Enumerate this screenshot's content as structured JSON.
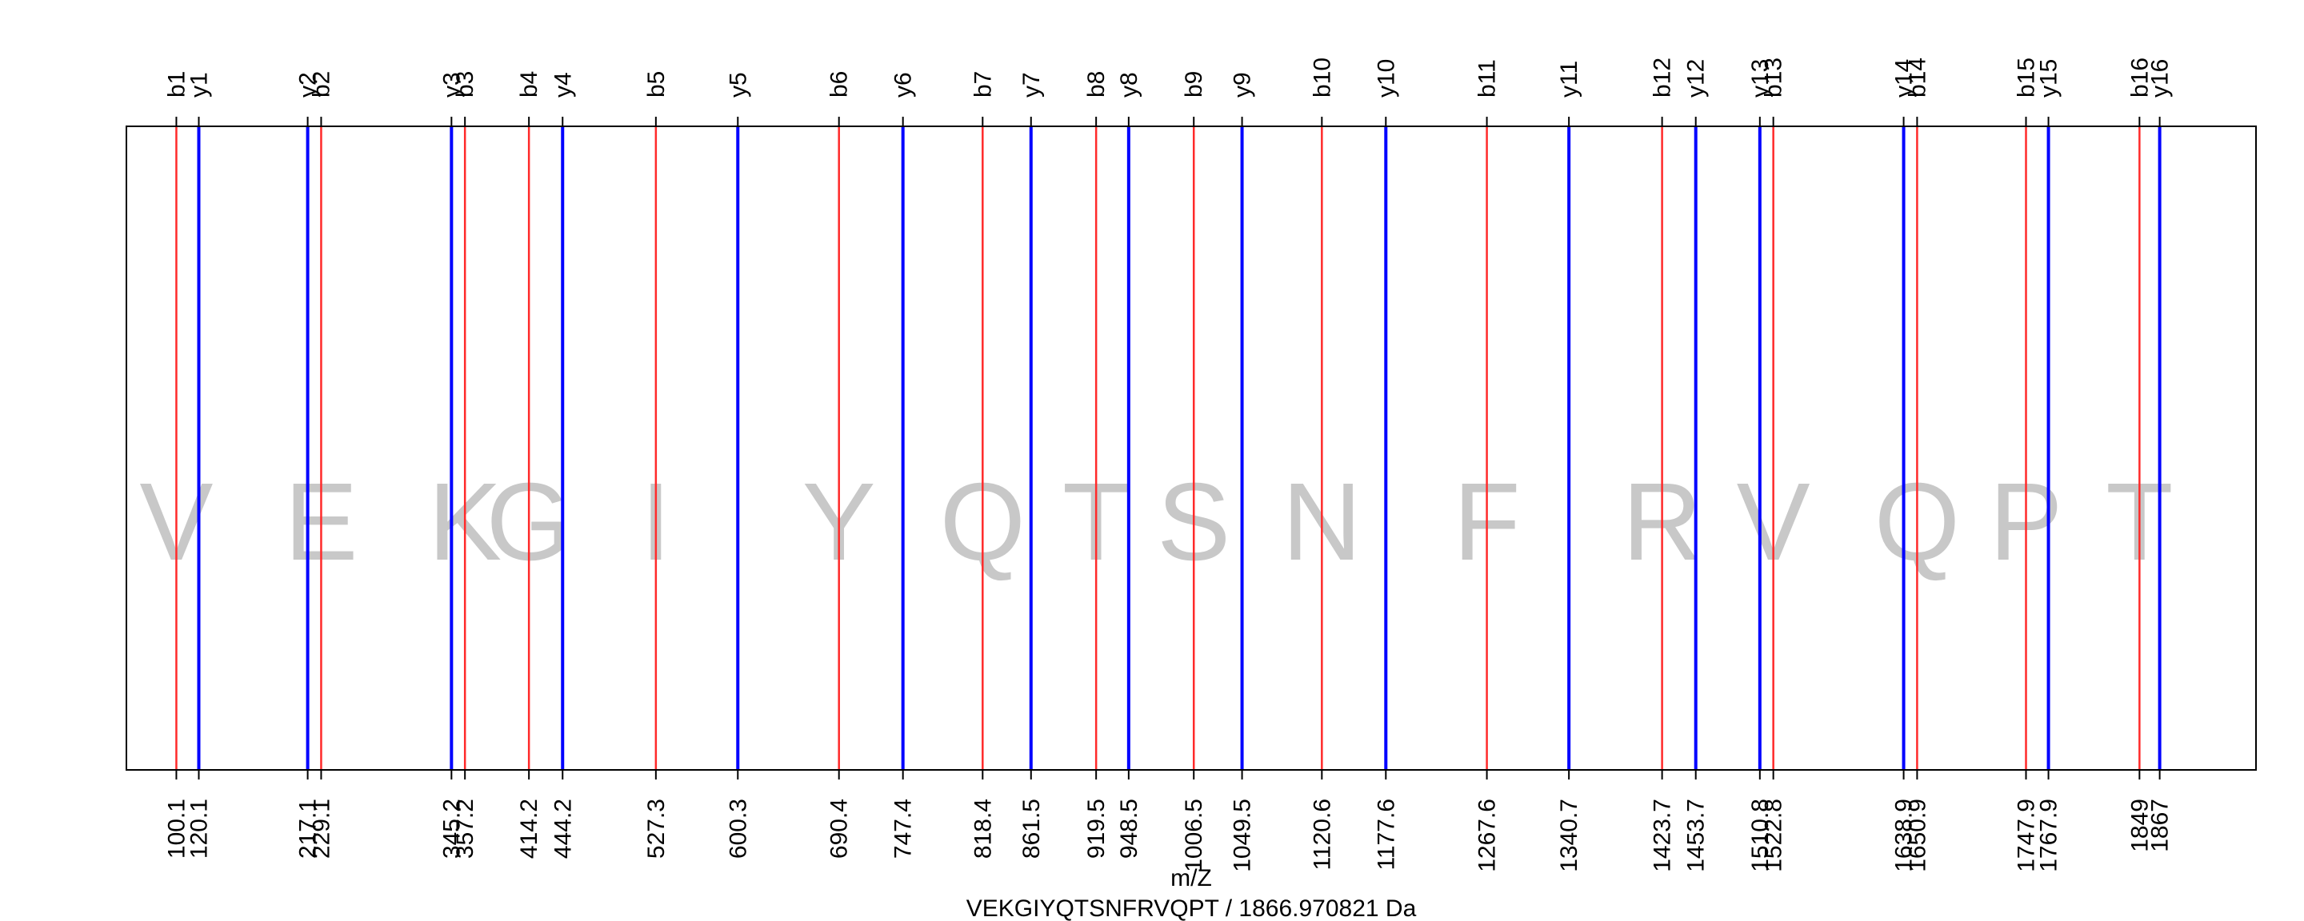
{
  "chart_data": {
    "type": "spectrum-fragment-ladder",
    "xlabel": "m/Z",
    "subtitle": "VEKGIYQTSNFRVQPT / 1866.970821 Da",
    "sequence": [
      "V",
      "E",
      "K",
      "G",
      "I",
      "Y",
      "Q",
      "T",
      "S",
      "N",
      "F",
      "R",
      "V",
      "Q",
      "P",
      "T"
    ],
    "xlim": [
      55.6,
      1952.8
    ],
    "colors": {
      "b": "#ff2a2a",
      "y": "#0000ff",
      "residue": "#c8c8c8",
      "axis": "#000000"
    },
    "b_ions": [
      {
        "label": "b1",
        "mz": 100.1,
        "tick": "100.1"
      },
      {
        "label": "b2",
        "mz": 229.1,
        "tick": "229.1"
      },
      {
        "label": "b3",
        "mz": 357.2,
        "tick": "357.2"
      },
      {
        "label": "b4",
        "mz": 414.2,
        "tick": "414.2"
      },
      {
        "label": "b5",
        "mz": 527.3,
        "tick": "527.3"
      },
      {
        "label": "b6",
        "mz": 690.4,
        "tick": "690.4"
      },
      {
        "label": "b7",
        "mz": 818.4,
        "tick": "818.4"
      },
      {
        "label": "b8",
        "mz": 919.5,
        "tick": "919.5"
      },
      {
        "label": "b9",
        "mz": 1006.5,
        "tick": "1006.5"
      },
      {
        "label": "b10",
        "mz": 1120.6,
        "tick": "1120.6"
      },
      {
        "label": "b11",
        "mz": 1267.6,
        "tick": "1267.6"
      },
      {
        "label": "b12",
        "mz": 1423.7,
        "tick": "1423.7"
      },
      {
        "label": "b13",
        "mz": 1522.8,
        "tick": "1522.8"
      },
      {
        "label": "b14",
        "mz": 1650.9,
        "tick": "1650.9"
      },
      {
        "label": "b15",
        "mz": 1747.9,
        "tick": "1747.9"
      },
      {
        "label": "b16",
        "mz": 1849.0,
        "tick": "1849"
      }
    ],
    "y_ions": [
      {
        "label": "y1",
        "mz": 120.1,
        "tick": "120.1"
      },
      {
        "label": "y2",
        "mz": 217.1,
        "tick": "217.1"
      },
      {
        "label": "y3",
        "mz": 345.2,
        "tick": "345.2"
      },
      {
        "label": "y4",
        "mz": 444.2,
        "tick": "444.2"
      },
      {
        "label": "y5",
        "mz": 600.3,
        "tick": "600.3"
      },
      {
        "label": "y6",
        "mz": 747.4,
        "tick": "747.4"
      },
      {
        "label": "y7",
        "mz": 861.5,
        "tick": "861.5"
      },
      {
        "label": "y8",
        "mz": 948.5,
        "tick": "948.5"
      },
      {
        "label": "y9",
        "mz": 1049.5,
        "tick": "1049.5"
      },
      {
        "label": "y10",
        "mz": 1177.6,
        "tick": "1177.6"
      },
      {
        "label": "y11",
        "mz": 1340.7,
        "tick": "1340.7"
      },
      {
        "label": "y12",
        "mz": 1453.7,
        "tick": "1453.7"
      },
      {
        "label": "y13",
        "mz": 1510.8,
        "tick": "1510.8"
      },
      {
        "label": "y14",
        "mz": 1638.9,
        "tick": "1638.9"
      },
      {
        "label": "y15",
        "mz": 1767.9,
        "tick": "1767.9"
      },
      {
        "label": "y16",
        "mz": 1867.0,
        "tick": "1867"
      }
    ]
  }
}
